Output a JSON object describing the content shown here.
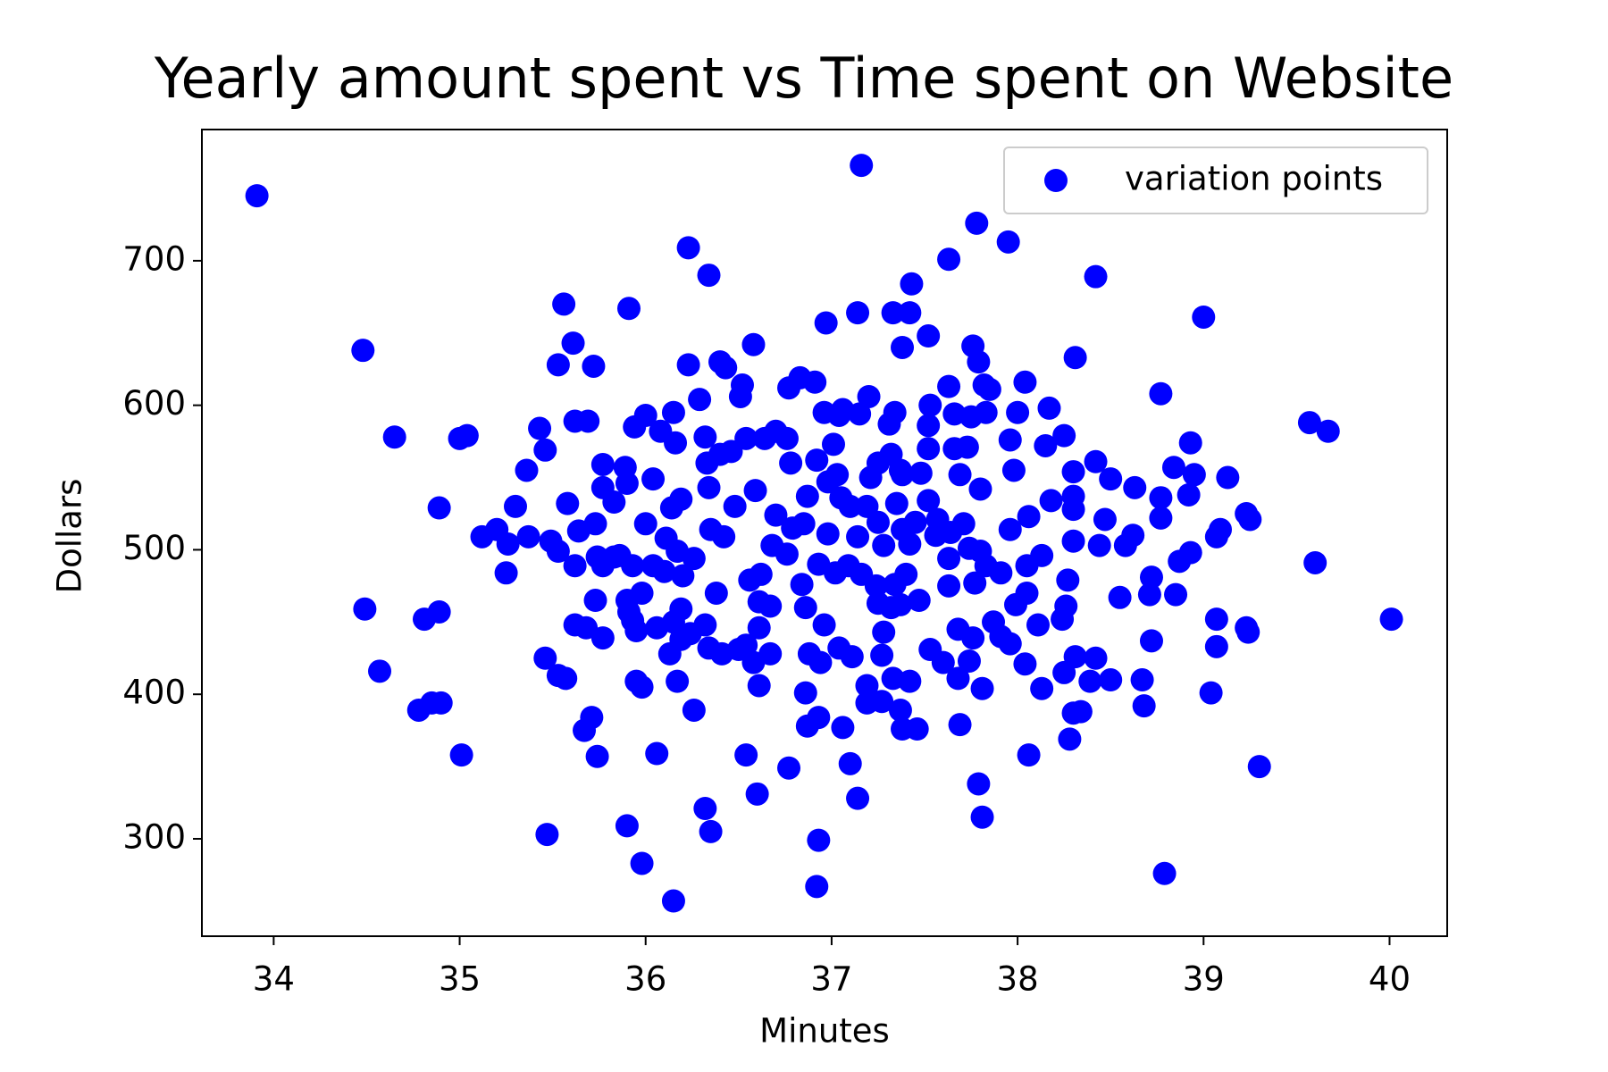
{
  "chart_data": {
    "type": "scatter",
    "title": "Yearly amount spent vs Time spent on Website",
    "xlabel": "Minutes",
    "ylabel": "Dollars",
    "xlim": [
      33.614,
      40.31
    ],
    "ylim": [
      232.6,
      790.8
    ],
    "xticks": [
      34,
      35,
      36,
      37,
      38,
      39,
      40
    ],
    "yticks": [
      300,
      400,
      500,
      600,
      700
    ],
    "legend": "upper right",
    "series": [
      {
        "name": "variation points",
        "color": "#0000ff",
        "x": [
          33.91,
          37.16,
          34.48,
          34.65,
          34.89,
          34.49,
          34.57,
          34.81,
          34.89,
          34.78,
          34.85,
          34.9,
          35.01,
          35.0,
          35.04,
          35.47,
          35.98,
          36.15,
          35.9,
          36.32,
          36.35,
          36.92,
          36.93,
          37.14,
          37.1,
          37.79,
          37.81,
          38.79,
          39.3,
          40.01,
          39.6,
          39.57,
          39.67,
          39.0,
          38.42,
          37.78,
          37.95,
          37.63,
          37.43,
          36.23,
          36.34,
          35.91,
          35.56,
          35.61,
          35.53,
          35.72,
          35.43,
          35.46,
          35.36,
          35.3,
          35.12,
          35.2,
          35.26,
          35.25,
          35.37,
          35.49,
          35.53,
          35.62,
          35.64,
          35.58,
          35.46,
          35.53,
          35.57,
          35.62,
          35.68,
          35.77,
          35.71,
          35.67,
          35.74,
          35.73,
          36.06,
          36.17,
          35.95,
          35.98,
          36.26,
          36.6,
          36.77,
          36.54,
          36.61,
          36.86,
          36.87,
          36.93,
          37.06,
          37.19,
          37.27,
          37.37,
          37.38,
          37.46,
          37.69,
          37.81,
          38.06,
          38.28,
          38.3,
          38.34,
          38.68,
          38.67,
          38.72,
          39.04,
          39.07,
          39.07,
          39.23,
          39.24,
          39.23,
          39.25,
          39.13,
          39.07,
          39.09,
          38.93,
          38.95,
          38.84,
          38.92,
          38.77,
          38.77,
          38.77,
          38.62,
          38.58,
          38.63,
          38.5,
          38.47,
          38.42,
          38.44,
          38.55,
          38.71,
          38.72,
          38.85,
          38.87,
          38.93,
          38.42,
          38.5,
          38.39,
          38.31,
          38.25,
          38.31,
          38.17,
          38.25,
          38.15,
          38.18,
          38.3,
          38.3,
          38.3,
          38.3,
          38.27,
          38.26,
          38.24,
          38.11,
          38.13,
          38.04,
          38.05,
          38.05,
          38.13,
          37.99,
          38.06,
          37.96,
          38.0,
          37.98,
          37.96,
          38.04,
          37.76,
          37.79,
          37.82,
          37.85,
          37.83,
          37.75,
          37.66,
          37.63,
          37.52,
          37.38,
          37.33,
          37.42,
          37.14,
          36.97,
          37.2,
          37.15,
          37.34,
          37.31,
          37.53,
          37.52,
          37.52,
          37.52,
          37.69,
          37.66,
          37.73,
          37.8,
          37.71,
          37.74,
          37.8,
          37.83,
          37.91,
          37.77,
          37.63,
          37.68,
          37.76,
          37.87,
          37.91,
          37.96,
          37.74,
          37.68,
          37.6,
          37.53,
          37.47,
          37.4,
          37.34,
          37.32,
          37.28,
          37.27,
          37.33,
          37.42,
          37.19,
          37.11,
          37.04,
          36.96,
          36.88,
          36.94,
          36.86,
          36.84,
          36.93,
          36.98,
          37.02,
          37.09,
          37.16,
          37.24,
          37.28,
          37.25,
          37.19,
          37.1,
          37.05,
          37.03,
          36.98,
          37.21,
          37.25,
          37.32,
          37.38,
          37.48,
          37.38,
          37.42,
          37.56,
          37.63,
          37.01,
          37.04,
          36.96,
          37.06,
          36.87,
          36.85,
          36.92,
          36.78,
          36.76,
          36.7,
          36.77,
          36.83,
          36.91,
          36.64,
          36.54,
          36.59,
          36.7,
          36.68,
          36.76,
          36.79,
          36.62,
          36.56,
          36.61,
          36.67,
          36.61,
          36.54,
          36.5,
          36.67,
          36.58,
          36.41,
          36.38,
          36.48,
          36.42,
          36.35,
          36.34,
          36.4,
          36.33,
          36.32,
          36.46,
          36.52,
          36.51,
          36.43,
          36.4,
          36.58,
          36.23,
          36.29,
          36.15,
          36.16,
          36.08,
          36.0,
          35.94,
          36.04,
          36.19,
          36.14,
          36.0,
          36.11,
          36.17,
          36.26,
          36.2,
          36.1,
          36.04,
          35.93,
          35.86,
          35.9,
          35.93,
          35.98,
          36.06,
          36.15,
          36.19,
          36.19,
          36.13,
          36.24,
          36.32,
          36.34,
          35.83,
          35.77,
          35.9,
          35.89,
          35.77,
          35.62,
          35.69,
          35.83,
          35.77,
          35.74,
          35.73,
          35.91,
          35.95,
          37.14,
          37.25,
          37.37,
          37.35,
          37.37,
          37.45,
          37.57,
          37.64
        ],
        "values": [
          745,
          766,
          638,
          578,
          529,
          459,
          416,
          452,
          457,
          389,
          394,
          394,
          358,
          577,
          579,
          303,
          283,
          257,
          309,
          321,
          305,
          267,
          299,
          328,
          352,
          338,
          315,
          276,
          350,
          452,
          491,
          588,
          582,
          661,
          689,
          726,
          713,
          701,
          684,
          709,
          690,
          667,
          670,
          643,
          628,
          627,
          584,
          569,
          555,
          530,
          509,
          514,
          504,
          484,
          509,
          506,
          499,
          489,
          513,
          532,
          425,
          413,
          411,
          448,
          446,
          439,
          384,
          375,
          357,
          465,
          359,
          409,
          409,
          405,
          389,
          331,
          349,
          358,
          406,
          401,
          378,
          384,
          377,
          394,
          395,
          389,
          376,
          376,
          379,
          404,
          358,
          369,
          387,
          388,
          392,
          410,
          437,
          401,
          433,
          452,
          446,
          443,
          525,
          521,
          550,
          509,
          514,
          574,
          552,
          557,
          538,
          522,
          536,
          608,
          510,
          503,
          543,
          549,
          521,
          561,
          503,
          467,
          469,
          481,
          469,
          492,
          498,
          425,
          410,
          409,
          426,
          415,
          633,
          598,
          579,
          572,
          534,
          537,
          528,
          554,
          506,
          479,
          461,
          452,
          448,
          404,
          421,
          470,
          489,
          496,
          462,
          523,
          514,
          595,
          555,
          576,
          616,
          641,
          630,
          614,
          611,
          595,
          592,
          594,
          613,
          648,
          640,
          664,
          664,
          664,
          657,
          606,
          594,
          595,
          587,
          600,
          586,
          570,
          534,
          552,
          570,
          571,
          542,
          518,
          501,
          499,
          489,
          484,
          477,
          475,
          445,
          439,
          450,
          440,
          435,
          423,
          411,
          422,
          431,
          465,
          483,
          476,
          460,
          443,
          427,
          411,
          409,
          406,
          426,
          432,
          448,
          428,
          422,
          460,
          476,
          490,
          511,
          484,
          489,
          483,
          475,
          503,
          519,
          530,
          530,
          536,
          552,
          547,
          550,
          560,
          566,
          552,
          553,
          514,
          504,
          510,
          494,
          573,
          593,
          595,
          597,
          537,
          518,
          562,
          560,
          577,
          582,
          612,
          619,
          616,
          577,
          577,
          541,
          524,
          503,
          497,
          515,
          483,
          479,
          464,
          461,
          446,
          434,
          431,
          428,
          422,
          428,
          470,
          530,
          509,
          514,
          543,
          566,
          560,
          578,
          568,
          614,
          606,
          626,
          630,
          642,
          628,
          604,
          595,
          574,
          582,
          593,
          585,
          549,
          535,
          529,
          518,
          508,
          499,
          494,
          482,
          485,
          489,
          489,
          496,
          465,
          451,
          470,
          446,
          450,
          459,
          438,
          428,
          442,
          448,
          432,
          533,
          543,
          546,
          557,
          559,
          589,
          589,
          495,
          489,
          495,
          518,
          457,
          444,
          509,
          463,
          462,
          532,
          555,
          519,
          521,
          512
        ]
      }
    ]
  }
}
